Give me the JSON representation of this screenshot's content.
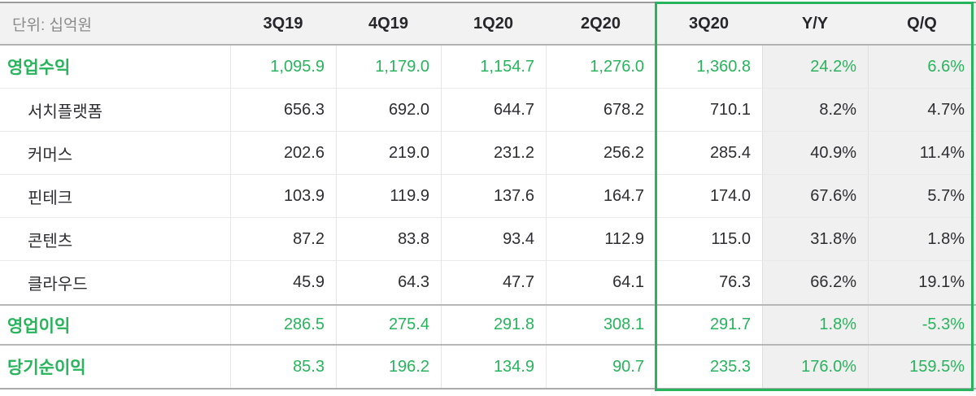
{
  "chart_data": {
    "type": "table",
    "unit_label": "단위: 십억원",
    "columns": [
      "3Q19",
      "4Q19",
      "1Q20",
      "2Q20",
      "3Q20",
      "Y/Y",
      "Q/Q"
    ],
    "highlighted_columns": [
      "3Q20",
      "Y/Y",
      "Q/Q"
    ],
    "rows": [
      {
        "label": "영업수익",
        "emphasis": true,
        "indent": false,
        "values": [
          "1,095.9",
          "1,179.0",
          "1,154.7",
          "1,276.0",
          "1,360.8",
          "24.2%",
          "6.6%"
        ]
      },
      {
        "label": "서치플랫폼",
        "emphasis": false,
        "indent": true,
        "values": [
          "656.3",
          "692.0",
          "644.7",
          "678.2",
          "710.1",
          "8.2%",
          "4.7%"
        ]
      },
      {
        "label": "커머스",
        "emphasis": false,
        "indent": true,
        "values": [
          "202.6",
          "219.0",
          "231.2",
          "256.2",
          "285.4",
          "40.9%",
          "11.4%"
        ]
      },
      {
        "label": "핀테크",
        "emphasis": false,
        "indent": true,
        "values": [
          "103.9",
          "119.9",
          "137.6",
          "164.7",
          "174.0",
          "67.6%",
          "5.7%"
        ]
      },
      {
        "label": "콘텐츠",
        "emphasis": false,
        "indent": true,
        "values": [
          "87.2",
          "83.8",
          "93.4",
          "112.9",
          "115.0",
          "31.8%",
          "1.8%"
        ]
      },
      {
        "label": "클라우드",
        "emphasis": false,
        "indent": true,
        "values": [
          "45.9",
          "64.3",
          "47.7",
          "64.1",
          "76.3",
          "66.2%",
          "19.1%"
        ]
      },
      {
        "label": "영업이익",
        "emphasis": true,
        "indent": false,
        "values": [
          "286.5",
          "275.4",
          "291.8",
          "308.1",
          "291.7",
          "1.8%",
          "-5.3%"
        ]
      },
      {
        "label": "당기순이익",
        "emphasis": true,
        "indent": false,
        "values": [
          "85.3",
          "196.2",
          "134.9",
          "90.7",
          "235.3",
          "176.0%",
          "159.5%"
        ]
      }
    ]
  },
  "colors": {
    "accent_green": "#28b45c",
    "text_dark": "#2d2d32",
    "unit_label_gray": "#8a8a8a",
    "header_bg": "#f2f2f2",
    "shade_column_bg": "#f0f0f0"
  }
}
